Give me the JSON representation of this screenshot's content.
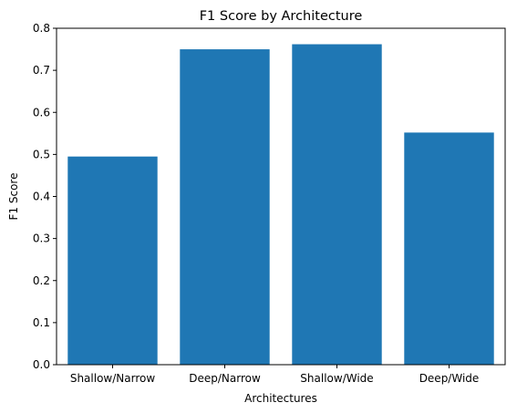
{
  "chart_data": {
    "type": "bar",
    "title": "F1 Score by Architecture",
    "xlabel": "Architectures",
    "ylabel": "F1 Score",
    "categories": [
      "Shallow/Narrow",
      "Deep/Narrow",
      "Shallow/Wide",
      "Deep/Wide"
    ],
    "values": [
      0.495,
      0.75,
      0.762,
      0.552
    ],
    "ylim": [
      0,
      0.8
    ],
    "yticks": [
      "0.0",
      "0.1",
      "0.2",
      "0.3",
      "0.4",
      "0.5",
      "0.6",
      "0.7",
      "0.8"
    ],
    "bar_color": "#1f77b4",
    "grid": false,
    "legend": "none"
  }
}
